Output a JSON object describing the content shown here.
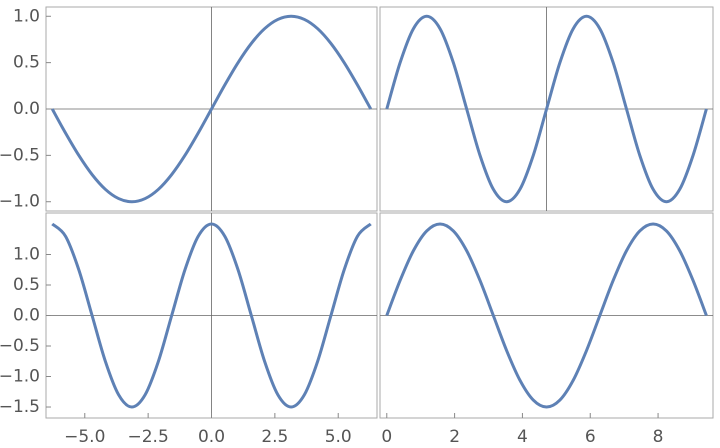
{
  "chart_data": [
    {
      "type": "line",
      "x": [
        -6.283,
        -5.76,
        -5.236,
        -4.712,
        -4.189,
        -3.665,
        -3.142,
        -2.618,
        -2.094,
        -1.571,
        -1.047,
        -0.524,
        0,
        0.524,
        1.047,
        1.571,
        2.094,
        2.618,
        3.142,
        3.665,
        4.189,
        4.712,
        5.236,
        5.76,
        6.283
      ],
      "series": [
        {
          "color": "#5e81b5",
          "values": [
            0,
            -0.259,
            -0.5,
            -0.707,
            -0.866,
            -0.966,
            -1,
            -0.966,
            -0.866,
            -0.707,
            -0.5,
            -0.259,
            0,
            0.259,
            0.5,
            0.707,
            0.866,
            0.966,
            1,
            0.966,
            0.866,
            0.707,
            0.5,
            0.259,
            0
          ]
        }
      ],
      "xlim": [
        -6.53,
        6.53
      ],
      "ylim": [
        -1.1,
        1.1
      ],
      "yticks": [
        {
          "value": -1,
          "label": "−1.0"
        },
        {
          "value": -0.5,
          "label": "−0.5"
        },
        {
          "value": 0,
          "label": "0.0"
        },
        0.5,
        {
          "value": 1,
          "label": "1.0"
        }
      ],
      "hline": 0,
      "vline": 0
    },
    {
      "type": "line",
      "x": [
        0,
        0.393,
        0.785,
        1.178,
        1.571,
        1.963,
        2.356,
        2.749,
        3.142,
        3.534,
        3.927,
        4.32,
        4.712,
        5.105,
        5.498,
        5.89,
        6.283,
        6.676,
        7.069,
        7.461,
        7.854,
        8.247,
        8.639,
        9.032,
        9.425
      ],
      "series": [
        {
          "color": "#5e81b5",
          "values": [
            0,
            0.5,
            0.866,
            1,
            0.866,
            0.5,
            0,
            -0.5,
            -0.866,
            -1,
            -0.866,
            -0.5,
            0,
            0.5,
            0.866,
            1,
            0.866,
            0.5,
            0,
            -0.5,
            -0.866,
            -1,
            -0.866,
            -0.5,
            0
          ]
        }
      ],
      "xlim": [
        -0.2,
        9.62
      ],
      "ylim": [
        -1.1,
        1.1
      ],
      "hline": 0,
      "vline": 4.712
    },
    {
      "type": "line",
      "x": [
        -6.283,
        -5.76,
        -5.236,
        -4.712,
        -4.189,
        -3.665,
        -3.142,
        -2.618,
        -2.094,
        -1.571,
        -1.047,
        -0.524,
        0,
        0.524,
        1.047,
        1.571,
        2.094,
        2.618,
        3.142,
        3.665,
        4.189,
        4.712,
        5.236,
        5.76,
        6.283
      ],
      "series": [
        {
          "color": "#5e81b5",
          "values": [
            1.5,
            1.299,
            0.75,
            0,
            -0.75,
            -1.299,
            -1.5,
            -1.299,
            -0.75,
            0,
            0.75,
            1.299,
            1.5,
            1.299,
            0.75,
            0,
            -0.75,
            -1.299,
            -1.5,
            -1.299,
            -0.75,
            0,
            0.75,
            1.299,
            1.5
          ]
        }
      ],
      "xlim": [
        -6.53,
        6.53
      ],
      "ylim": [
        -1.68,
        1.68
      ],
      "xticks": [
        {
          "value": -5,
          "label": "−5.0"
        },
        {
          "value": -2.5,
          "label": "−2.5"
        },
        {
          "value": 0,
          "label": "0.0"
        },
        2.5,
        {
          "value": 5,
          "label": "5.0"
        }
      ],
      "yticks": [
        {
          "value": -1.5,
          "label": "−1.5"
        },
        {
          "value": -1,
          "label": "−1.0"
        },
        {
          "value": -0.5,
          "label": "−0.5"
        },
        {
          "value": 0,
          "label": "0.0"
        },
        0.5,
        {
          "value": 1,
          "label": "1.0"
        }
      ],
      "hline": 0,
      "vline": 0
    },
    {
      "type": "line",
      "x": [
        0,
        0.393,
        0.785,
        1.178,
        1.571,
        1.963,
        2.356,
        2.749,
        3.142,
        3.534,
        3.927,
        4.32,
        4.712,
        5.105,
        5.498,
        5.89,
        6.283,
        6.676,
        7.069,
        7.461,
        7.854,
        8.247,
        8.639,
        9.032,
        9.425
      ],
      "series": [
        {
          "color": "#5e81b5",
          "values": [
            0,
            0.574,
            1.061,
            1.386,
            1.5,
            1.386,
            1.061,
            0.574,
            0,
            -0.574,
            -1.061,
            -1.386,
            -1.5,
            -1.386,
            -1.061,
            -0.574,
            0,
            0.574,
            1.061,
            1.386,
            1.5,
            1.386,
            1.061,
            0.574,
            0
          ]
        }
      ],
      "xlim": [
        -0.2,
        9.62
      ],
      "ylim": [
        -1.68,
        1.68
      ],
      "xticks": [
        0,
        2,
        4,
        6,
        8
      ],
      "hline": 0
    }
  ]
}
